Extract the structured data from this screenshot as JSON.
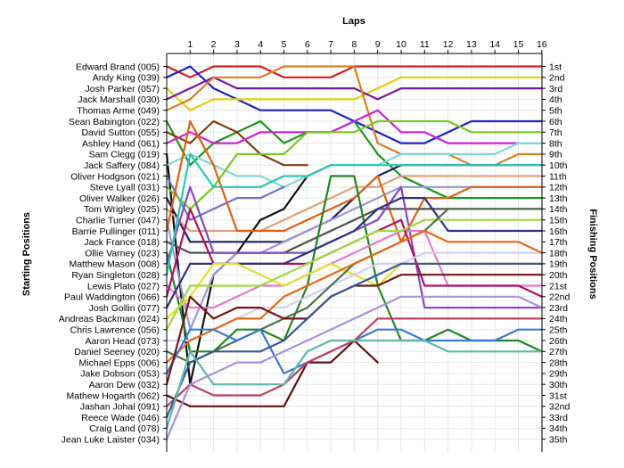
{
  "chart_data": {
    "type": "line",
    "title": "",
    "xlabel": "Laps",
    "ylabel_left": "Starting Positions",
    "ylabel_right": "Finishing Positions",
    "x_ticks": [
      "1",
      "2",
      "3",
      "4",
      "5",
      "6",
      "7",
      "8",
      "9",
      "10",
      "11",
      "12",
      "13",
      "14",
      "15",
      "16"
    ],
    "finishing_labels": [
      "1st",
      "2nd",
      "3rd",
      "4th",
      "5th",
      "6th",
      "7th",
      "8th",
      "9th",
      "10th",
      "11th",
      "12th",
      "13th",
      "14th",
      "15th",
      "16th",
      "17th",
      "18th",
      "19th",
      "20th",
      "21st",
      "22nd",
      "23rd",
      "24th",
      "25th",
      "26th",
      "27th",
      "28th",
      "29th",
      "30th",
      "31st",
      "32nd",
      "33rd",
      "34th",
      "35th"
    ],
    "grid": true,
    "series": [
      {
        "name": "Edward Brand (005)",
        "color": "#d42020",
        "values": [
          1,
          2,
          1,
          1,
          1,
          2,
          2,
          2,
          1,
          1,
          1,
          1,
          1,
          1,
          1,
          1,
          1
        ]
      },
      {
        "name": "Andy King (039)",
        "color": "#2020c8",
        "values": [
          2,
          1,
          3,
          4,
          5,
          5,
          5,
          5,
          6,
          7,
          8,
          8,
          7,
          6,
          6,
          6,
          6
        ]
      },
      {
        "name": "Josh Parker (057)",
        "color": "#e0d010",
        "values": [
          3,
          5,
          4,
          4,
          4,
          4,
          4,
          4,
          4,
          3,
          2,
          2,
          2,
          2,
          2,
          2,
          2
        ]
      },
      {
        "name": "Jack Marshall (030)",
        "color": "#7818a0",
        "values": [
          4,
          3,
          2,
          3,
          3,
          3,
          3,
          3,
          3,
          4,
          3,
          3,
          3,
          3,
          3,
          3,
          3
        ]
      },
      {
        "name": "Thomas Arme (049)",
        "color": "#d88020",
        "values": [
          5,
          4,
          2,
          2,
          2,
          1,
          1,
          1,
          1,
          8,
          9,
          9,
          9,
          10,
          10,
          9,
          9
        ]
      },
      {
        "name": "Sean Babington (022)",
        "color": "#189818",
        "values": [
          6,
          10,
          8,
          7,
          6,
          8,
          7,
          7,
          6,
          9,
          11,
          12,
          13,
          13,
          13,
          13,
          13
        ]
      },
      {
        "name": "David Sutton (055)",
        "color": "#804010",
        "values": [
          7,
          8,
          6,
          7,
          9,
          10,
          10
        ]
      },
      {
        "name": "Ashley Hand (061)",
        "color": "#d020d8",
        "values": [
          8,
          7,
          8,
          8,
          7,
          7,
          7,
          7,
          6,
          5,
          7,
          7,
          8,
          8,
          8,
          8,
          8
        ]
      },
      {
        "name": "Sam Clegg (019)",
        "color": "#101010",
        "values": [
          9,
          30,
          20,
          18,
          15,
          14,
          11,
          10
        ]
      },
      {
        "name": "Jack Saffery (084)",
        "color": "#80d8d0",
        "values": [
          10,
          9,
          10,
          11,
          11,
          12,
          11,
          10,
          10,
          10,
          9,
          9,
          9,
          9,
          9,
          8,
          8
        ]
      },
      {
        "name": "Oliver Hodgson (021)",
        "color": "#7070d0",
        "values": [
          11,
          15,
          14,
          13,
          13,
          12
        ]
      },
      {
        "name": "Steve Lyall (031)",
        "color": "#78c820",
        "values": [
          12,
          14,
          12,
          9,
          9,
          9,
          7,
          7,
          7,
          6,
          6,
          6,
          6,
          7,
          7,
          7,
          7
        ]
      },
      {
        "name": "Oliver Walker (026)",
        "color": "#202060",
        "values": [
          13,
          17,
          17,
          17,
          17,
          17,
          16,
          15,
          13,
          11,
          10,
          10,
          10,
          10,
          10,
          10,
          10
        ]
      },
      {
        "name": "Tom Wrigley (025)",
        "color": "#e0a078",
        "values": [
          14,
          16,
          16,
          16,
          16,
          15,
          14,
          13,
          12,
          12,
          11,
          11,
          11,
          11,
          11,
          11,
          11
        ]
      },
      {
        "name": "Charlie Turner (047)",
        "color": "#9898d8",
        "values": [
          15,
          25,
          20,
          18,
          18,
          17,
          16,
          15,
          14,
          13,
          12,
          12,
          12,
          12,
          12,
          12,
          12
        ]
      },
      {
        "name": "Barrie Pullinger (011)",
        "color": "#e06010",
        "values": [
          16,
          6,
          10,
          16,
          16,
          16,
          15,
          14,
          13,
          11,
          17,
          13,
          13,
          12,
          12,
          12,
          12
        ]
      },
      {
        "name": "Jack France (018)",
        "color": "#505050",
        "values": [
          17,
          18,
          18,
          18,
          18,
          18,
          17,
          16,
          15,
          14,
          14,
          14,
          14,
          14,
          14,
          14,
          14
        ]
      },
      {
        "name": "Ollie Varney (023)",
        "color": "#208820",
        "values": [
          18,
          27,
          27,
          25,
          25,
          26,
          21,
          11,
          11,
          21,
          26,
          26,
          25,
          26,
          26,
          26,
          27
        ]
      },
      {
        "name": "Matthew Mason (008)",
        "color": "#8848c0",
        "values": [
          19,
          12,
          18,
          18,
          18,
          18,
          18,
          17,
          16,
          15,
          12,
          23,
          23,
          23,
          23,
          23,
          23
        ]
      },
      {
        "name": "Ryan Singleton (028)",
        "color": "#28c8b8",
        "values": [
          20,
          9,
          12,
          12,
          12,
          11,
          11,
          10,
          10,
          10,
          10,
          10,
          10,
          10,
          10,
          10,
          10
        ]
      },
      {
        "name": "Lewis Plato (027)",
        "color": "#e878d0",
        "values": [
          21,
          23,
          23,
          22,
          21,
          21,
          20,
          19,
          18,
          17,
          16,
          16,
          21,
          21,
          21,
          21,
          21
        ]
      },
      {
        "name": "Paul Waddington (066)",
        "color": "#b01060",
        "values": [
          22,
          14,
          19,
          19,
          19,
          19,
          19,
          18,
          17,
          16,
          15,
          21,
          21,
          21,
          21,
          21,
          22
        ]
      },
      {
        "name": "Josh Gollin (077)",
        "color": "#303080",
        "values": [
          23,
          19,
          19,
          19,
          19,
          19,
          18,
          17,
          16,
          14,
          13,
          13,
          16,
          16,
          16,
          16,
          16
        ]
      },
      {
        "name": "Andreas Backman (024)",
        "color": "#e0e030",
        "values": [
          24,
          22,
          19,
          19,
          20,
          21,
          20,
          19,
          20,
          21,
          19,
          19,
          19,
          19,
          19,
          19,
          19
        ]
      },
      {
        "name": "Chris Lawrence (056)",
        "color": "#a0d840",
        "values": [
          25,
          21,
          21,
          21,
          21,
          20,
          19,
          18,
          17,
          16,
          16,
          15,
          15,
          15,
          15,
          15,
          15
        ]
      },
      {
        "name": "Aaron Head (073)",
        "color": "#d0d0f0",
        "values": [
          26,
          26,
          25,
          24,
          23,
          23,
          22,
          21,
          20,
          19,
          19,
          18,
          18,
          18,
          18,
          18,
          18
        ]
      },
      {
        "name": "Daniel Seeney (020)",
        "color": "#507050",
        "values": [
          27,
          28,
          27,
          26,
          25,
          24,
          23,
          21,
          19,
          18,
          17,
          16,
          14,
          14,
          14,
          14,
          14
        ]
      },
      {
        "name": "Michael Epps (006)",
        "color": "#e86818",
        "values": [
          28,
          26,
          25,
          24,
          24,
          22,
          21,
          20,
          19,
          18,
          17,
          16,
          17,
          17,
          17,
          17,
          18
        ]
      },
      {
        "name": "Jake Dobson (053)",
        "color": "#3878d8",
        "values": [
          29,
          25,
          25,
          26,
          25,
          29,
          28,
          27,
          26,
          25,
          25,
          26,
          26,
          26,
          26,
          25,
          25
        ]
      },
      {
        "name": "Aaron Dew (032)",
        "color": "#701818",
        "values": [
          30,
          22,
          24,
          23,
          23,
          24,
          24,
          22,
          21,
          21,
          20,
          20,
          20,
          20,
          20,
          20,
          20
        ]
      },
      {
        "name": "Mathew Hogarth (062)",
        "color": "#601010",
        "values": [
          31,
          32,
          32,
          32,
          32,
          32,
          28,
          28,
          26,
          28
        ]
      },
      {
        "name": "Jashan Johal (091)",
        "color": "#c04060",
        "values": [
          32,
          30,
          31,
          31,
          31,
          30,
          28,
          27,
          26,
          24,
          24,
          24,
          24,
          24,
          24,
          24,
          24
        ]
      },
      {
        "name": "Reece Wade (046)",
        "color": "#3a5898",
        "values": [
          33,
          28,
          27,
          27,
          27,
          26,
          24,
          22,
          21,
          20,
          19,
          19,
          19,
          19,
          19,
          19,
          19
        ]
      },
      {
        "name": "Craig Land (078)",
        "color": "#60b8a8",
        "values": [
          34,
          27,
          30,
          30,
          30,
          30,
          27,
          26,
          26,
          26,
          26,
          26,
          27,
          27,
          27,
          27,
          27
        ]
      },
      {
        "name": "Jean Luke Laister (034)",
        "color": "#a890e0",
        "values": [
          35,
          30,
          29,
          28,
          28,
          27,
          26,
          25,
          24,
          23,
          22,
          22,
          22,
          22,
          22,
          22,
          23
        ]
      }
    ]
  }
}
